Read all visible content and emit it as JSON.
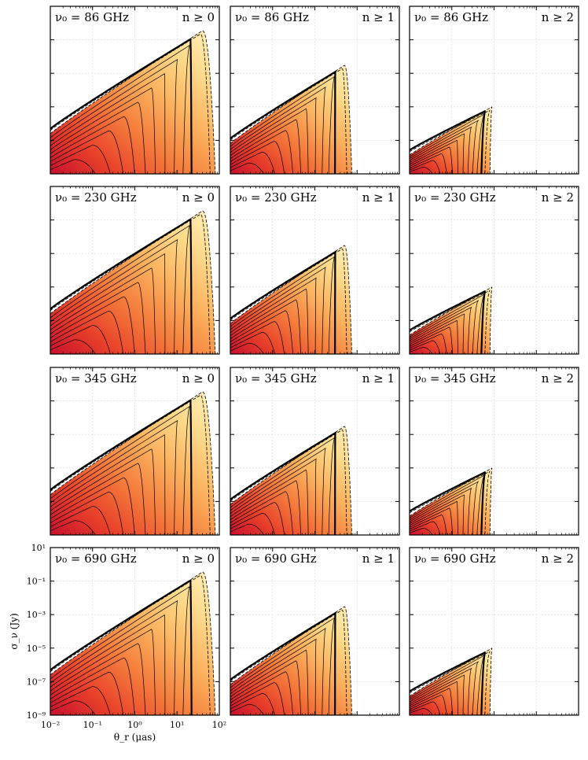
{
  "chart_data": {
    "type": "contour",
    "xlabel": "θ_r (μas)",
    "ylabel": "σ_ν (Jy)",
    "xscale": "log",
    "yscale": "log",
    "xlim": [
      0.01,
      100
    ],
    "ylim": [
      1e-09,
      10
    ],
    "x_tick_labels": [
      "10⁻²",
      "10⁻¹",
      "10⁰",
      "10¹",
      "10²"
    ],
    "x_tick_values": [
      0.01,
      0.1,
      1,
      10,
      100
    ],
    "y_tick_labels": [
      "10⁻⁹",
      "10⁻⁷",
      "10⁻⁵",
      "10⁻³",
      "10⁻¹",
      "10¹"
    ],
    "y_tick_values": [
      1e-09,
      1e-07,
      1e-05,
      0.001,
      0.1,
      10
    ],
    "grid": true,
    "colormap": [
      "#c8102e",
      "#e8402a",
      "#f47a3b",
      "#fbb05c",
      "#fdd98a",
      "#fff2bd"
    ],
    "frequencies": [
      "86 GHz",
      "230 GHz",
      "345 GHz",
      "690 GHz"
    ],
    "orders": [
      "n ≥ 0",
      "n ≥ 1",
      "n ≥ 2"
    ],
    "panels": [
      {
        "row": 0,
        "col": 0,
        "label_left": "ν₀ = 86 GHz",
        "label_right": "n ≥ 0",
        "peak_theta": 40,
        "peak_sigma": 0.35,
        "thick_cut_theta": 22,
        "outer_cut_theta": 80
      },
      {
        "row": 0,
        "col": 1,
        "label_left": "ν₀ = 86 GHz",
        "label_right": "n ≥ 1",
        "peak_theta": 5,
        "peak_sigma": 0.003,
        "thick_cut_theta": 3,
        "outer_cut_theta": 7.5
      },
      {
        "row": 0,
        "col": 2,
        "label_left": "ν₀ = 86 GHz",
        "label_right": "n ≥ 2",
        "peak_theta": 0.9,
        "peak_sigma": 1e-05,
        "thick_cut_theta": 0.5,
        "outer_cut_theta": 0.8
      },
      {
        "row": 1,
        "col": 0,
        "label_left": "ν₀ = 230 GHz",
        "label_right": "n ≥ 0",
        "peak_theta": 40,
        "peak_sigma": 0.35,
        "thick_cut_theta": 22,
        "outer_cut_theta": 80
      },
      {
        "row": 1,
        "col": 1,
        "label_left": "ν₀ = 230 GHz",
        "label_right": "n ≥ 1",
        "peak_theta": 5,
        "peak_sigma": 0.003,
        "thick_cut_theta": 3,
        "outer_cut_theta": 7.5
      },
      {
        "row": 1,
        "col": 2,
        "label_left": "ν₀ = 230 GHz",
        "label_right": "n ≥ 2",
        "peak_theta": 0.9,
        "peak_sigma": 1e-05,
        "thick_cut_theta": 0.5,
        "outer_cut_theta": 0.8
      },
      {
        "row": 2,
        "col": 0,
        "label_left": "ν₀ = 345 GHz",
        "label_right": "n ≥ 0",
        "peak_theta": 40,
        "peak_sigma": 0.35,
        "thick_cut_theta": 22,
        "outer_cut_theta": 80
      },
      {
        "row": 2,
        "col": 1,
        "label_left": "ν₀ = 345 GHz",
        "label_right": "n ≥ 1",
        "peak_theta": 5,
        "peak_sigma": 0.003,
        "thick_cut_theta": 3,
        "outer_cut_theta": 7.5
      },
      {
        "row": 2,
        "col": 2,
        "label_left": "ν₀ = 345 GHz",
        "label_right": "n ≥ 2",
        "peak_theta": 0.9,
        "peak_sigma": 1e-05,
        "thick_cut_theta": 0.5,
        "outer_cut_theta": 0.8
      },
      {
        "row": 3,
        "col": 0,
        "label_left": "ν₀ = 690 GHz",
        "label_right": "n ≥ 0",
        "peak_theta": 40,
        "peak_sigma": 0.35,
        "thick_cut_theta": 22,
        "outer_cut_theta": 80
      },
      {
        "row": 3,
        "col": 1,
        "label_left": "ν₀ = 690 GHz",
        "label_right": "n ≥ 1",
        "peak_theta": 5,
        "peak_sigma": 0.003,
        "thick_cut_theta": 3,
        "outer_cut_theta": 7.5
      },
      {
        "row": 3,
        "col": 2,
        "label_left": "ν₀ = 690 GHz",
        "label_right": "n ≥ 2",
        "peak_theta": 0.9,
        "peak_sigma": 1e-05,
        "thick_cut_theta": 0.5,
        "outer_cut_theta": 0.8
      }
    ]
  }
}
